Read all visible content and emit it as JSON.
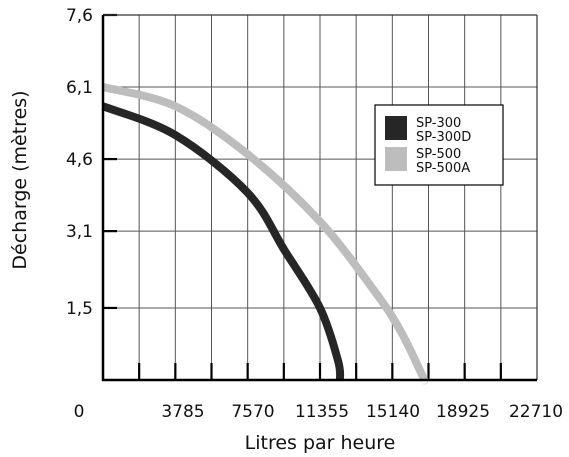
{
  "chart_data": {
    "type": "line",
    "xlabel": "Litres par heure",
    "ylabel": "Décharge (mètres)",
    "x_ticks": [
      "0",
      "3785",
      "7570",
      "11355",
      "15140",
      "18925",
      "22710"
    ],
    "y_ticks": [
      "1,5",
      "3,1",
      "4,6",
      "6,1",
      "7,6"
    ],
    "xlim": [
      0,
      22710
    ],
    "ylim": [
      0,
      7.6
    ],
    "grid": true,
    "legend_position": "top-right",
    "series": [
      {
        "name": "SP-300 SP-300D",
        "legend_lines": [
          "SP-300",
          "SP-300D"
        ],
        "color": "#262626",
        "x": [
          0,
          3785,
          7570,
          9500,
          11355,
          12300,
          12400
        ],
        "y": [
          5.7,
          5.1,
          3.9,
          2.7,
          1.5,
          0.4,
          0
        ]
      },
      {
        "name": "SP-500 SP-500A",
        "legend_lines": [
          "SP-500",
          "SP-500A"
        ],
        "color": "#bdbdbd",
        "x": [
          0,
          3785,
          7570,
          11355,
          14300,
          15600,
          16700,
          16800
        ],
        "y": [
          6.1,
          5.7,
          4.7,
          3.3,
          1.8,
          1.0,
          0.1,
          0
        ]
      }
    ]
  }
}
